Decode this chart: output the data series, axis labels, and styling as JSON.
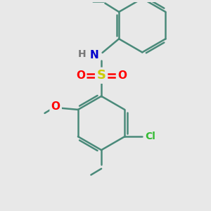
{
  "bg_color": "#e8e8e8",
  "bond_color": "#4a8a7a",
  "bond_width": 1.8,
  "atom_colors": {
    "S": "#cccc00",
    "O": "#ff0000",
    "N": "#0000cc",
    "H": "#777777",
    "Cl": "#33bb33",
    "C": "#4a8a7a"
  },
  "scale": 1.0
}
